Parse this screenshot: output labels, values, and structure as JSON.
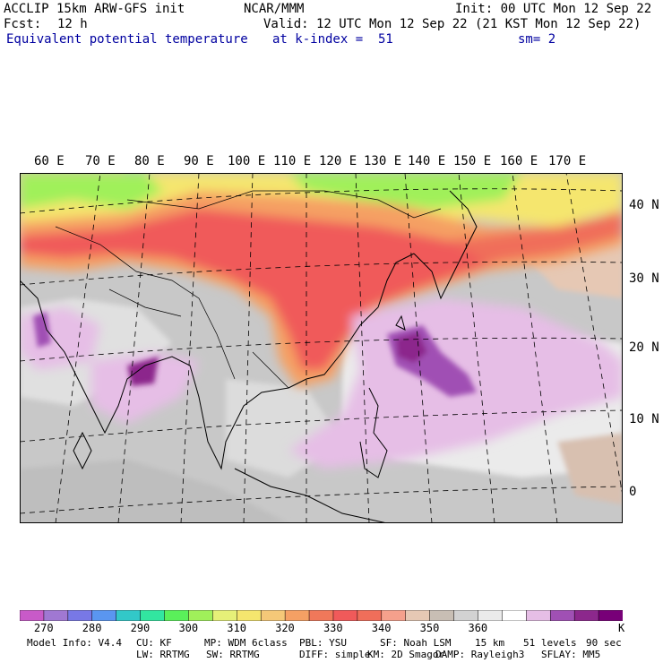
{
  "header": {
    "model": "ACCLIP 15km ARW-GFS init",
    "institution": "NCAR/MMM",
    "init": "Init: 00 UTC Mon 12 Sep 22",
    "fcst_label": "Fcst:",
    "fcst_value": "12 h",
    "valid": "Valid: 12 UTC Mon 12 Sep 22 (21 KST Mon 12 Sep 22)",
    "field": "Equivalent potential temperature",
    "level": "at k-index =  51",
    "smoothing": "sm= 2"
  },
  "map": {
    "lon_labels": [
      "60 E",
      "70 E",
      "80 E",
      "90 E",
      "100 E",
      "110 E",
      "120 E",
      "130 E",
      "140 E",
      "150 E",
      "160 E",
      "170 E"
    ],
    "lat_labels": [
      "40 N",
      "30 N",
      "20 N",
      "10 N",
      "0"
    ]
  },
  "colorbar": {
    "colors": [
      "#c85ac8",
      "#a078d2",
      "#7878e6",
      "#5a96f0",
      "#32c8c8",
      "#32e6a0",
      "#5af05a",
      "#a0f05a",
      "#e6f078",
      "#f5e66e",
      "#f5c878",
      "#f5a064",
      "#f0785a",
      "#f05a5a",
      "#f06e5a",
      "#f5a08c",
      "#e6c8b4",
      "#c8beb4",
      "#d2d2d2",
      "#ebebeb",
      "#ffffff",
      "#e6bee6",
      "#a050b4",
      "#8c288c",
      "#780078"
    ],
    "labels": [
      "270",
      "280",
      "290",
      "300",
      "310",
      "320",
      "330",
      "340",
      "350",
      "360"
    ],
    "unit": "K"
  },
  "footer": {
    "line1": [
      "Model Info: V4.4",
      "CU: KF",
      "MP: WDM 6class",
      "PBL: YSU",
      "SF: Noah LSM",
      "15 km",
      "51 levels",
      "90 sec"
    ],
    "line2": [
      "LW: RRTMG",
      "SW: RRTMG",
      "DIFF: simple",
      "KM: 2D Smagor",
      "DAMP: Rayleigh3",
      "SFLAY: MM5"
    ]
  }
}
